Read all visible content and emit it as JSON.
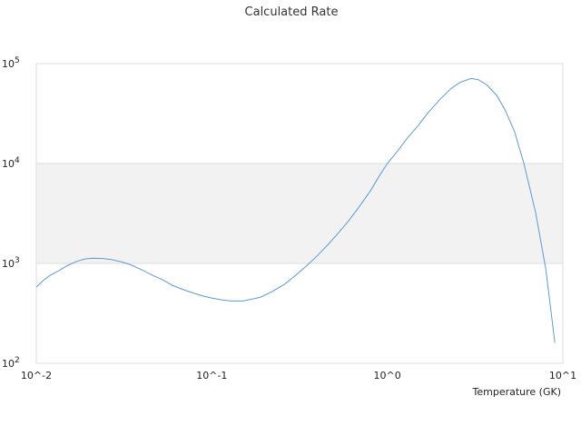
{
  "chart_data": {
    "type": "line",
    "title": "Calculated Rate",
    "xlabel": "Temperature (GK)",
    "ylabel": "",
    "x_scale": "log",
    "y_scale": "log",
    "xlim": [
      0.01,
      10
    ],
    "ylim": [
      100,
      100000
    ],
    "x_ticks": [
      {
        "value": 0.01,
        "base": "10^",
        "exp": "-2"
      },
      {
        "value": 0.1,
        "base": "10^",
        "exp": "-1"
      },
      {
        "value": 1,
        "base": "10^",
        "exp": "0"
      },
      {
        "value": 10,
        "base": "10^",
        "exp": "1"
      }
    ],
    "y_ticks": [
      {
        "value": 100,
        "base": "10",
        "exp": "2"
      },
      {
        "value": 1000,
        "base": "10",
        "exp": "3"
      },
      {
        "value": 10000,
        "base": "10",
        "exp": "4"
      },
      {
        "value": 100000,
        "base": "10",
        "exp": "5"
      }
    ],
    "band": [
      1000,
      10000
    ],
    "band_color": "#f2f2f2",
    "line_color": "#5b9bd5",
    "grid": true,
    "legend": "none",
    "series": [
      {
        "name": "",
        "x": [
          0.01,
          0.011,
          0.012,
          0.0135,
          0.015,
          0.017,
          0.019,
          0.021,
          0.024,
          0.027,
          0.031,
          0.035,
          0.04,
          0.046,
          0.053,
          0.06,
          0.07,
          0.08,
          0.09,
          0.1,
          0.115,
          0.13,
          0.15,
          0.17,
          0.19,
          0.22,
          0.26,
          0.3,
          0.35,
          0.4,
          0.46,
          0.53,
          0.6,
          0.7,
          0.8,
          0.9,
          1.0,
          1.15,
          1.3,
          1.5,
          1.7,
          2.0,
          2.3,
          2.6,
          3.0,
          3.3,
          3.7,
          4.2,
          4.7,
          5.3,
          6.0,
          7.0,
          8.0,
          9.0
        ],
        "y": [
          580,
          680,
          760,
          850,
          950,
          1050,
          1110,
          1130,
          1120,
          1090,
          1030,
          960,
          860,
          760,
          680,
          600,
          540,
          500,
          470,
          450,
          430,
          420,
          420,
          440,
          460,
          520,
          620,
          760,
          960,
          1200,
          1550,
          2050,
          2650,
          3800,
          5300,
          7500,
          10000,
          13500,
          18000,
          24000,
          32000,
          44000,
          56000,
          65000,
          71000,
          69000,
          61000,
          48000,
          34000,
          21000,
          10000,
          3200,
          870,
          160
        ]
      }
    ]
  }
}
